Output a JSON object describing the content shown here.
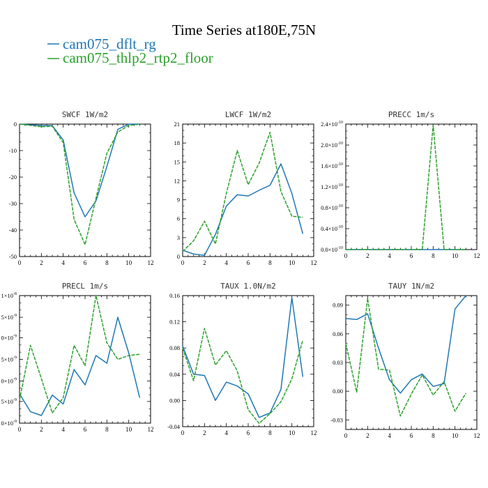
{
  "figure_title": "Time Series at180E,75N",
  "legend": [
    {
      "label": "cam075_dflt_rg",
      "color": "#1f77b4"
    },
    {
      "label": "cam075_thlp2_rtp2_floor",
      "color": "#2ca02c"
    }
  ],
  "chart_data": [
    {
      "type": "line",
      "title": "SWCF   1W/m2",
      "xlim": [
        0,
        12
      ],
      "ylim": [
        -50,
        0
      ],
      "xticks": [
        "0",
        "2",
        "4",
        "6",
        "8",
        "10",
        "12"
      ],
      "yticks": [
        {
          "v": 0,
          "label": "0"
        },
        {
          "v": -10,
          "label": "-10"
        },
        {
          "v": -20,
          "label": "-20"
        },
        {
          "v": -30,
          "label": "-30"
        },
        {
          "v": -40,
          "label": "-40"
        },
        {
          "v": -50,
          "label": "-50"
        }
      ],
      "x": [
        0,
        1,
        2,
        3,
        4,
        5,
        6,
        7,
        8,
        9,
        10,
        11
      ],
      "series": [
        {
          "name": "cam075_dflt_rg",
          "values": [
            0,
            -0.3,
            -0.5,
            -0.6,
            -6,
            -26,
            -35,
            -29,
            -16,
            -2,
            0,
            0
          ]
        },
        {
          "name": "cam075_thlp2_rtp2_floor",
          "values": [
            0,
            -0.5,
            -1.0,
            -0.8,
            -7,
            -36,
            -45.5,
            -28,
            -11,
            -3,
            -0.5,
            0
          ]
        }
      ]
    },
    {
      "type": "line",
      "title": "LWCF   1W/m2",
      "xlim": [
        0,
        12
      ],
      "ylim": [
        0,
        21
      ],
      "xticks": [
        "0",
        "2",
        "4",
        "6",
        "8",
        "10",
        "12"
      ],
      "yticks": [
        {
          "v": 0,
          "label": "0"
        },
        {
          "v": 3,
          "label": "3"
        },
        {
          "v": 6,
          "label": "6"
        },
        {
          "v": 9,
          "label": "9"
        },
        {
          "v": 12,
          "label": "12"
        },
        {
          "v": 15,
          "label": "15"
        },
        {
          "v": 18,
          "label": "18"
        },
        {
          "v": 21,
          "label": "21"
        }
      ],
      "x": [
        0,
        1,
        2,
        3,
        4,
        5,
        6,
        7,
        8,
        9,
        10,
        11
      ],
      "series": [
        {
          "name": "cam075_dflt_rg",
          "values": [
            1.0,
            0.4,
            0.2,
            3.5,
            8.0,
            9.8,
            9.6,
            10.5,
            11.3,
            14.7,
            10.0,
            3.6
          ]
        },
        {
          "name": "cam075_thlp2_rtp2_floor",
          "values": [
            0.8,
            2.5,
            5.6,
            2.0,
            10.0,
            16.8,
            11.4,
            14.8,
            19.7,
            10.3,
            6.4,
            6.2
          ]
        }
      ]
    },
    {
      "type": "line",
      "title": "PRECC   1m/s",
      "xlim": [
        0,
        12
      ],
      "ylim": [
        0,
        2.4e-10
      ],
      "xticks": [
        "0",
        "2",
        "4",
        "6",
        "8",
        "10",
        "12"
      ],
      "yticks": [
        {
          "v": 0,
          "label": "0.0×10",
          "exp": "-10"
        },
        {
          "v": 4e-11,
          "label": "0.4×10",
          "exp": "-10"
        },
        {
          "v": 8e-11,
          "label": "0.8×10",
          "exp": "-10"
        },
        {
          "v": 1.2e-10,
          "label": "1.2×10",
          "exp": "-10"
        },
        {
          "v": 1.6e-10,
          "label": "1.6×10",
          "exp": "-10"
        },
        {
          "v": 2e-10,
          "label": "2.0×10",
          "exp": "-10"
        },
        {
          "v": 2.4e-10,
          "label": "2.4×10",
          "exp": "-10"
        }
      ],
      "x": [
        0,
        1,
        2,
        3,
        4,
        5,
        6,
        7,
        8,
        9,
        10,
        11
      ],
      "series": [
        {
          "name": "cam075_dflt_rg",
          "values": [
            0,
            0,
            0,
            0,
            0,
            0,
            0,
            0,
            0,
            0,
            0,
            0
          ]
        },
        {
          "name": "cam075_thlp2_rtp2_floor",
          "values": [
            0,
            0,
            0,
            0,
            0,
            0,
            0,
            0,
            2.38e-10,
            0,
            0,
            0
          ]
        }
      ]
    },
    {
      "type": "line",
      "title": "PRECL   1m/s",
      "xlim": [
        0,
        12
      ],
      "ylim": [
        0,
        1e-08
      ],
      "xticks": [
        "0",
        "2",
        "4",
        "6",
        "8",
        "10",
        "12"
      ],
      "yticks": [
        {
          "v": 1e-08,
          "label": "1×10",
          "exp": "-8"
        },
        {
          "v": 8.3e-09,
          "label": "5×10",
          "exp": "-9"
        },
        {
          "v": 6.7e-09,
          "label": "0×10",
          "exp": "-9"
        },
        {
          "v": 5e-09,
          "label": "5×10",
          "exp": "-9"
        },
        {
          "v": 3.3e-09,
          "label": "0×10",
          "exp": "-9"
        },
        {
          "v": 1.7e-09,
          "label": "5×10",
          "exp": "-9"
        },
        {
          "v": 0,
          "label": "0×10",
          "exp": "-9"
        }
      ],
      "x": [
        0,
        1,
        2,
        3,
        4,
        5,
        6,
        7,
        8,
        9,
        10,
        11
      ],
      "series": [
        {
          "name": "cam075_dflt_rg",
          "values": [
            2.3e-09,
            9e-10,
            6e-10,
            2.2e-09,
            1.5e-09,
            4.2e-09,
            3e-09,
            5.3e-09,
            4.7e-09,
            8.3e-09,
            5.5e-09,
            2e-09
          ]
        },
        {
          "name": "cam075_thlp2_rtp2_floor",
          "values": [
            1.8e-09,
            6.1e-09,
            3.5e-09,
            8e-10,
            2e-09,
            6.1e-09,
            4.5e-09,
            1e-08,
            6.3e-09,
            5e-09,
            5.3e-09,
            5.4e-09
          ]
        }
      ]
    },
    {
      "type": "line",
      "title": "TAUX   1.0N/m2",
      "xlim": [
        0,
        12
      ],
      "ylim": [
        -0.04,
        0.16
      ],
      "xticks": [
        "0",
        "2",
        "4",
        "6",
        "8",
        "10",
        "12"
      ],
      "yticks": [
        {
          "v": -0.04,
          "label": "-0.04"
        },
        {
          "v": 0,
          "label": "0.00"
        },
        {
          "v": 0.04,
          "label": "0.04"
        },
        {
          "v": 0.08,
          "label": "0.08"
        },
        {
          "v": 0.12,
          "label": "0.12"
        },
        {
          "v": 0.16,
          "label": "0.16"
        }
      ],
      "x": [
        0,
        1,
        2,
        3,
        4,
        5,
        6,
        7,
        8,
        9,
        10,
        11
      ],
      "series": [
        {
          "name": "cam075_dflt_rg",
          "values": [
            0.083,
            0.04,
            0.038,
            0.0,
            0.028,
            0.022,
            0.01,
            -0.026,
            -0.019,
            0.017,
            0.157,
            0.036
          ]
        },
        {
          "name": "cam075_thlp2_rtp2_floor",
          "values": [
            0.08,
            0.03,
            0.11,
            0.054,
            0.076,
            0.045,
            -0.014,
            -0.035,
            -0.02,
            -0.002,
            0.033,
            0.092
          ]
        }
      ]
    },
    {
      "type": "line",
      "title": "TAUY   1N/m2",
      "xlim": [
        0,
        12
      ],
      "ylim": [
        -0.04,
        0.1
      ],
      "xticks": [
        "0",
        "2",
        "4",
        "6",
        "8",
        "10",
        "12"
      ],
      "yticks": [
        {
          "v": -0.03,
          "label": "-0.03"
        },
        {
          "v": 0,
          "label": "0.00"
        },
        {
          "v": 0.03,
          "label": "0.03"
        },
        {
          "v": 0.06,
          "label": "0.06"
        },
        {
          "v": 0.09,
          "label": "0.09"
        }
      ],
      "x": [
        0,
        1,
        2,
        3,
        4,
        5,
        6,
        7,
        8,
        9,
        10,
        11
      ],
      "series": [
        {
          "name": "cam075_dflt_rg",
          "values": [
            0.076,
            0.075,
            0.081,
            0.045,
            0.012,
            -0.002,
            0.012,
            0.018,
            0.005,
            0.008,
            0.086,
            0.1
          ]
        },
        {
          "name": "cam075_thlp2_rtp2_floor",
          "values": [
            0.05,
            -0.001,
            0.097,
            0.023,
            0.022,
            -0.026,
            -0.003,
            0.017,
            -0.004,
            0.01,
            -0.021,
            -0.002
          ]
        }
      ]
    }
  ]
}
